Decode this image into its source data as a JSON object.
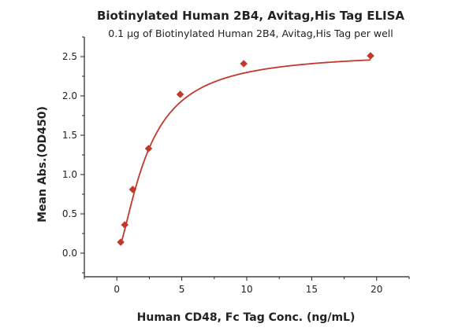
{
  "chart_data": {
    "type": "scatter",
    "title": "Biotinylated Human 2B4, Avitag,His Tag ELISA",
    "subtitle": "0.1 µg of Biotinylated Human 2B4, Avitag,His Tag per well",
    "xlabel": "Human CD48, Fc Tag Conc. (ng/mL)",
    "ylabel": "Mean Abs.(OD450)",
    "xlim": [
      -2.5,
      22.5
    ],
    "ylim": [
      -0.3,
      2.75
    ],
    "x_ticks": [
      "0",
      "5",
      "10",
      "15",
      "20"
    ],
    "y_ticks": [
      "0.0",
      "0.5",
      "1.0",
      "1.5",
      "2.0",
      "2.5"
    ],
    "grid": false,
    "legend": "none",
    "series": [
      {
        "x": [
          0.3,
          0.61,
          1.22,
          2.44,
          4.88,
          9.77,
          19.53
        ],
        "y": [
          0.14,
          0.36,
          0.81,
          1.33,
          2.02,
          2.41,
          2.51
        ],
        "color": "#c0392b",
        "marker": "diamond",
        "fit": "four-parameter logistic"
      }
    ]
  }
}
